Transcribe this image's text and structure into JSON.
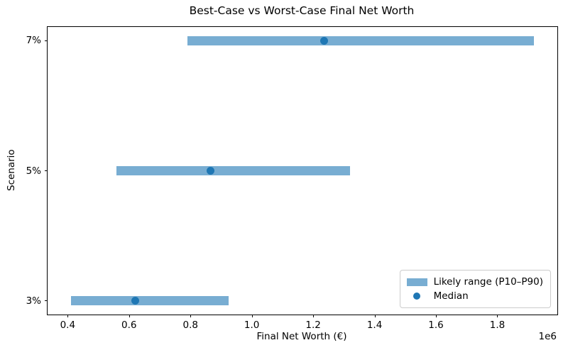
{
  "chart_data": {
    "type": "bar",
    "subtype": "horizontal-range-bars-with-median-points",
    "title": "Best-Case vs Worst-Case Final Net Worth",
    "xlabel": "Final Net Worth (€)",
    "ylabel": "Scenario",
    "x_offset_label": "1e6",
    "categories_bottom_to_top": [
      "3%",
      "5%",
      "7%"
    ],
    "series": [
      {
        "name": "Likely range (P10–P90)",
        "type": "range",
        "p10": [
          410000,
          560000,
          790000
        ],
        "p90": [
          925000,
          1320000,
          1920000
        ]
      },
      {
        "name": "Median",
        "type": "point",
        "values": [
          620000,
          865000,
          1235000
        ]
      }
    ],
    "xlim": [
      334500,
      1995500
    ],
    "xticks": [
      400000,
      600000,
      800000,
      1000000,
      1200000,
      1400000,
      1600000,
      1800000
    ],
    "xtick_labels": [
      "0.4",
      "0.6",
      "0.8",
      "1.0",
      "1.2",
      "1.4",
      "1.6",
      "1.8"
    ],
    "grid": false,
    "legend": {
      "position": "lower right",
      "items": [
        {
          "label": "Likely range (P10–P90)",
          "swatch": "bar"
        },
        {
          "label": "Median",
          "swatch": "dot"
        }
      ]
    },
    "colors": {
      "range_bar": "#78add2",
      "median": "#1f77b4",
      "spine": "#000000"
    }
  }
}
